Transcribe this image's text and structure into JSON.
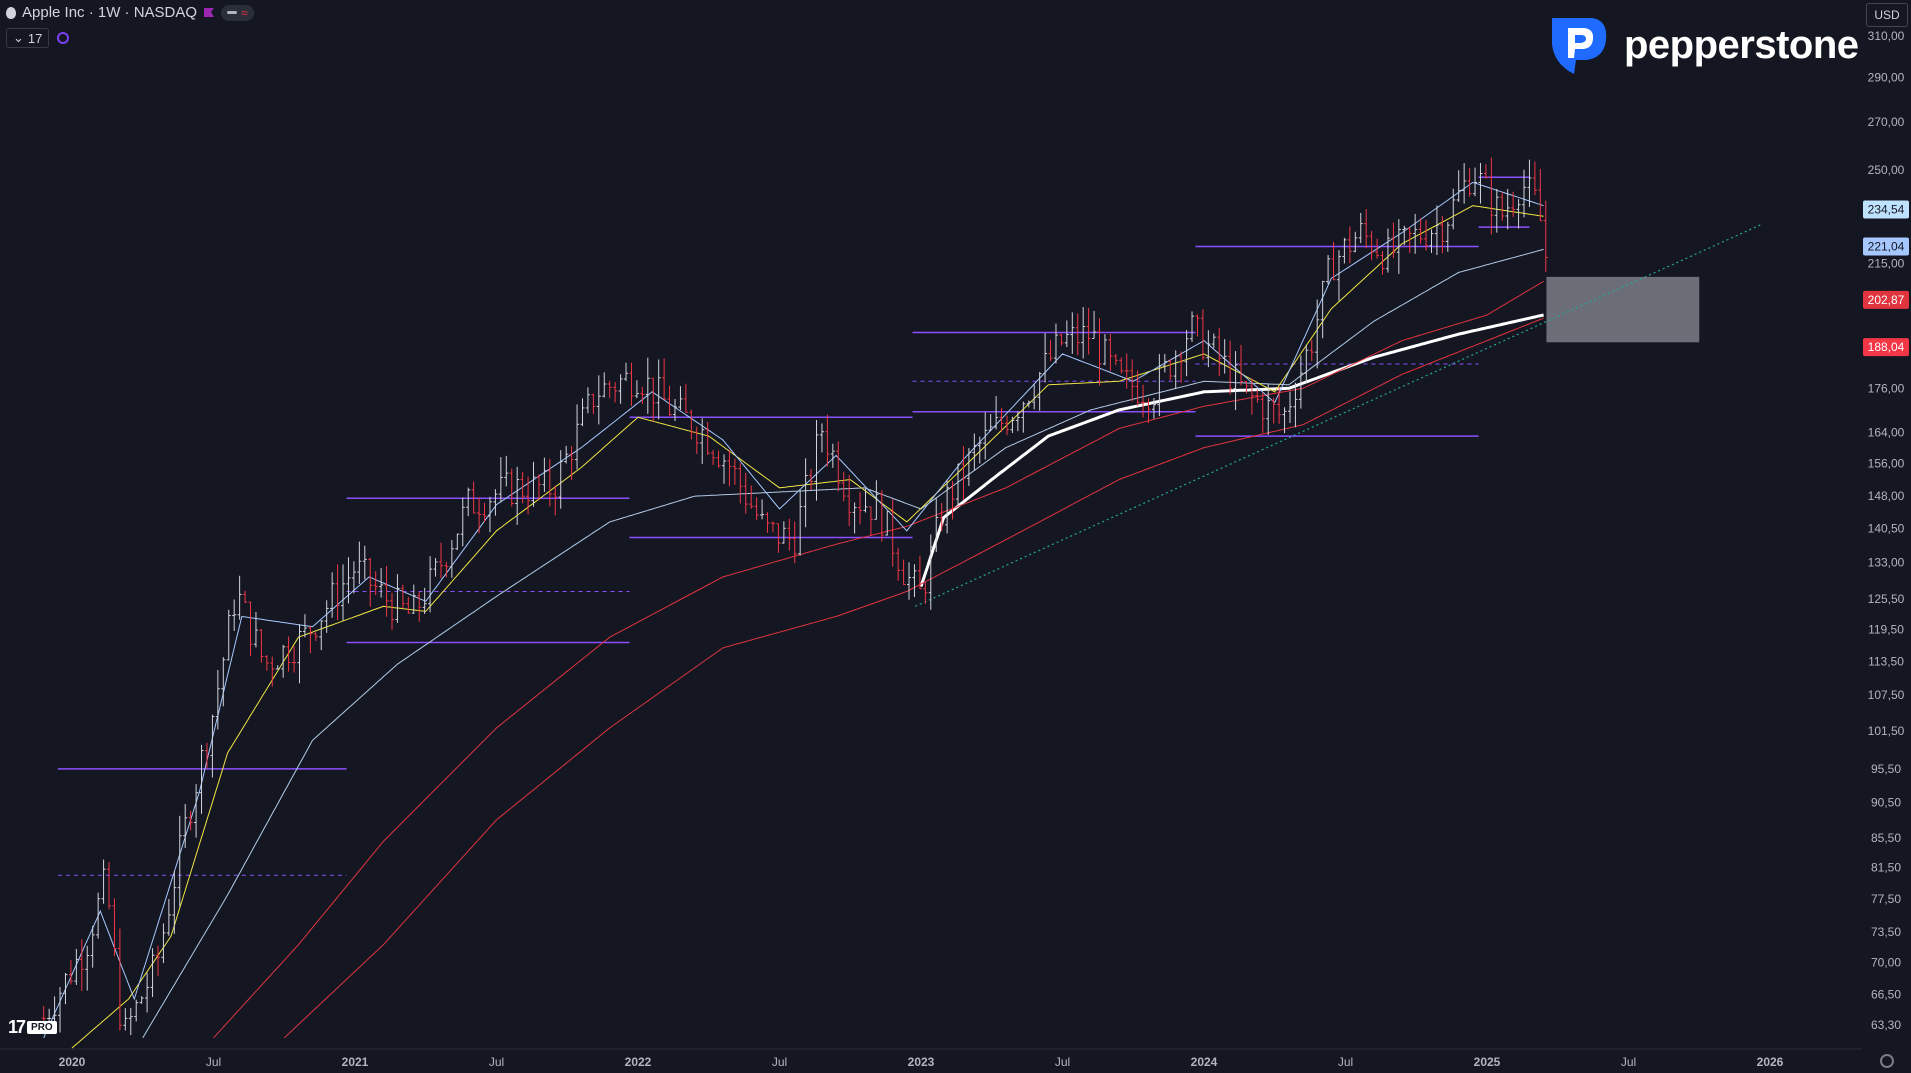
{
  "header": {
    "symbol_title": "Apple Inc · 1W · NASDAQ",
    "indicator_count": "17",
    "currency": "USD",
    "flag_color": "#9c27b0"
  },
  "brand": {
    "name": "pepperstone",
    "color": "#1f6bff"
  },
  "badges": {
    "pro": "PRO"
  },
  "icons": [
    "apple-icon",
    "flag-icon",
    "eye-icon",
    "chevron-down-icon",
    "gear-icon",
    "pepperstone-logo",
    "tradingview-logo"
  ],
  "colors": {
    "background": "#141722",
    "candle_up": "#d1d4dc",
    "candle_down": "#f23645",
    "level_line": "#8a4fff",
    "ma_white": "#ffffff",
    "ma_light_blue": "#a6c8ff",
    "ma_blue": "#b3cbe6",
    "ma_yellow": "#f0e442",
    "ma_red": "#e0343f",
    "trendline": "#26a69a",
    "zone": "#b2b5be"
  },
  "chart_data": {
    "type": "candlestick",
    "title": "Apple Inc · 1W · NASDAQ",
    "xlabel": "",
    "ylabel": "",
    "x_ticks": [
      "2020",
      "Jul",
      "2021",
      "Jul",
      "2022",
      "Jul",
      "2023",
      "Jul",
      "2024",
      "Jul",
      "2025",
      "Jul",
      "2026"
    ],
    "y_ticks": [
      "310,00",
      "290,00",
      "270,00",
      "250,00",
      "215,00",
      "176,00",
      "164,00",
      "156,00",
      "148,00",
      "140,50",
      "133,00",
      "125,50",
      "119,50",
      "113,50",
      "107,50",
      "101,50",
      "95,50",
      "90,50",
      "85,50",
      "81,50",
      "77,50",
      "73,50",
      "70,00",
      "66,50",
      "63,30"
    ],
    "ylim": [
      61,
      318
    ],
    "scale": "log",
    "grid": false,
    "price_labels": [
      {
        "value": "234,54",
        "bg": "#bfe3ff",
        "fg": "#141722"
      },
      {
        "value": "221,04",
        "bg": "#a6c8ff",
        "fg": "#141722"
      },
      {
        "value": "202,87",
        "bg": "#e0343f",
        "fg": "#ffffff"
      },
      {
        "value": "188,04",
        "bg": "#f23645",
        "fg": "#ffffff"
      }
    ],
    "price_path": [
      [
        2019.9,
        64
      ],
      [
        2020.05,
        72
      ],
      [
        2020.12,
        80
      ],
      [
        2020.18,
        62
      ],
      [
        2020.3,
        70
      ],
      [
        2020.4,
        87
      ],
      [
        2020.5,
        105
      ],
      [
        2020.58,
        127
      ],
      [
        2020.68,
        113
      ],
      [
        2020.82,
        118
      ],
      [
        2021.0,
        132
      ],
      [
        2021.1,
        126
      ],
      [
        2021.2,
        122
      ],
      [
        2021.28,
        130
      ],
      [
        2021.4,
        146
      ],
      [
        2021.55,
        150
      ],
      [
        2021.7,
        150
      ],
      [
        2021.85,
        175
      ],
      [
        2022.0,
        180
      ],
      [
        2022.12,
        170
      ],
      [
        2022.22,
        165
      ],
      [
        2022.32,
        156
      ],
      [
        2022.45,
        140
      ],
      [
        2022.55,
        138
      ],
      [
        2022.65,
        165
      ],
      [
        2022.75,
        148
      ],
      [
        2022.85,
        145
      ],
      [
        2022.95,
        130
      ],
      [
        2023.0,
        126
      ],
      [
        2023.08,
        146
      ],
      [
        2023.2,
        160
      ],
      [
        2023.35,
        172
      ],
      [
        2023.5,
        190
      ],
      [
        2023.6,
        192
      ],
      [
        2023.7,
        178
      ],
      [
        2023.82,
        175
      ],
      [
        2023.95,
        194
      ],
      [
        2024.05,
        185
      ],
      [
        2024.15,
        174
      ],
      [
        2024.28,
        168
      ],
      [
        2024.38,
        190
      ],
      [
        2024.45,
        215
      ],
      [
        2024.55,
        226
      ],
      [
        2024.65,
        218
      ],
      [
        2024.75,
        225
      ],
      [
        2024.85,
        230
      ],
      [
        2024.95,
        250
      ],
      [
        2025.05,
        232
      ],
      [
        2025.12,
        245
      ],
      [
        2025.18,
        236
      ],
      [
        2025.22,
        210
      ]
    ],
    "moving_averages": [
      {
        "name": "MA white",
        "color": "#ffffff",
        "width": 3,
        "points": [
          [
            2023.0,
            128
          ],
          [
            2023.08,
            143
          ],
          [
            2023.25,
            152
          ],
          [
            2023.45,
            163
          ],
          [
            2023.7,
            170
          ],
          [
            2024.0,
            175
          ],
          [
            2024.3,
            176
          ],
          [
            2024.6,
            185
          ],
          [
            2024.9,
            192
          ],
          [
            2025.2,
            198
          ]
        ]
      },
      {
        "name": "MA red 1",
        "color": "#e0343f",
        "width": 1,
        "points": [
          [
            2020.5,
            62
          ],
          [
            2020.8,
            72
          ],
          [
            2021.1,
            85
          ],
          [
            2021.5,
            102
          ],
          [
            2021.9,
            118
          ],
          [
            2022.3,
            130
          ],
          [
            2022.7,
            137
          ],
          [
            2022.95,
            141
          ],
          [
            2023.3,
            150
          ],
          [
            2023.7,
            165
          ],
          [
            2024.0,
            171
          ],
          [
            2024.35,
            176
          ],
          [
            2024.7,
            190
          ],
          [
            2025.0,
            198
          ],
          [
            2025.2,
            209
          ]
        ]
      },
      {
        "name": "MA red 2",
        "color": "#e0343f",
        "width": 1,
        "points": [
          [
            2020.75,
            62
          ],
          [
            2021.1,
            72
          ],
          [
            2021.5,
            88
          ],
          [
            2021.9,
            102
          ],
          [
            2022.3,
            116
          ],
          [
            2022.7,
            122
          ],
          [
            2022.95,
            127
          ],
          [
            2023.3,
            138
          ],
          [
            2023.7,
            152
          ],
          [
            2024.0,
            160
          ],
          [
            2024.35,
            166
          ],
          [
            2024.7,
            180
          ],
          [
            2025.0,
            190
          ],
          [
            2025.2,
            197
          ]
        ]
      },
      {
        "name": "MA light blue",
        "color": "#b3cbe6",
        "width": 1,
        "points": [
          [
            2020.25,
            62
          ],
          [
            2020.55,
            78
          ],
          [
            2020.85,
            100
          ],
          [
            2021.15,
            113
          ],
          [
            2021.5,
            126
          ],
          [
            2021.9,
            142
          ],
          [
            2022.2,
            148
          ],
          [
            2022.5,
            149
          ],
          [
            2022.8,
            150
          ],
          [
            2023.0,
            145
          ],
          [
            2023.3,
            160
          ],
          [
            2023.6,
            170
          ],
          [
            2024.0,
            178
          ],
          [
            2024.3,
            177
          ],
          [
            2024.6,
            196
          ],
          [
            2024.9,
            212
          ],
          [
            2025.2,
            220
          ]
        ]
      },
      {
        "name": "MA yellow",
        "color": "#f0e442",
        "width": 1,
        "points": [
          [
            2020.0,
            61
          ],
          [
            2020.2,
            66
          ],
          [
            2020.35,
            73
          ],
          [
            2020.55,
            98
          ],
          [
            2020.8,
            118
          ],
          [
            2021.1,
            124
          ],
          [
            2021.25,
            123
          ],
          [
            2021.5,
            140
          ],
          [
            2021.8,
            155
          ],
          [
            2022.0,
            168
          ],
          [
            2022.25,
            163
          ],
          [
            2022.5,
            150
          ],
          [
            2022.75,
            152
          ],
          [
            2022.95,
            142
          ],
          [
            2023.15,
            155
          ],
          [
            2023.45,
            177
          ],
          [
            2023.7,
            178
          ],
          [
            2024.0,
            186
          ],
          [
            2024.25,
            175
          ],
          [
            2024.45,
            200
          ],
          [
            2024.7,
            222
          ],
          [
            2024.95,
            236
          ],
          [
            2025.2,
            232
          ]
        ]
      },
      {
        "name": "MA blue",
        "color": "#a6c8ff",
        "width": 1,
        "points": [
          [
            2019.9,
            62
          ],
          [
            2020.1,
            76
          ],
          [
            2020.22,
            66
          ],
          [
            2020.45,
            92
          ],
          [
            2020.6,
            122
          ],
          [
            2020.85,
            120
          ],
          [
            2021.05,
            130
          ],
          [
            2021.25,
            125
          ],
          [
            2021.5,
            146
          ],
          [
            2021.8,
            160
          ],
          [
            2022.05,
            175
          ],
          [
            2022.3,
            162
          ],
          [
            2022.5,
            145
          ],
          [
            2022.7,
            158
          ],
          [
            2022.95,
            140
          ],
          [
            2023.15,
            157
          ],
          [
            2023.5,
            186
          ],
          [
            2023.75,
            178
          ],
          [
            2024.0,
            190
          ],
          [
            2024.25,
            172
          ],
          [
            2024.45,
            210
          ],
          [
            2024.7,
            226
          ],
          [
            2024.95,
            245
          ],
          [
            2025.2,
            236
          ]
        ]
      }
    ],
    "horizontal_levels": [
      {
        "price": 95.5,
        "from": 2019.95,
        "to": 2020.97,
        "style": "solid"
      },
      {
        "price": 80.5,
        "from": 2019.95,
        "to": 2020.97,
        "style": "dashed"
      },
      {
        "price": 147.5,
        "from": 2020.97,
        "to": 2021.97,
        "style": "solid"
      },
      {
        "price": 117,
        "from": 2020.97,
        "to": 2021.97,
        "style": "solid"
      },
      {
        "price": 127,
        "from": 2020.97,
        "to": 2021.97,
        "style": "dashed"
      },
      {
        "price": 168,
        "from": 2021.97,
        "to": 2022.97,
        "style": "solid"
      },
      {
        "price": 138.5,
        "from": 2021.97,
        "to": 2022.97,
        "style": "solid"
      },
      {
        "price": 192.5,
        "from": 2022.97,
        "to": 2023.97,
        "style": "solid"
      },
      {
        "price": 169.5,
        "from": 2022.97,
        "to": 2023.97,
        "style": "solid"
      },
      {
        "price": 178,
        "from": 2022.97,
        "to": 2023.97,
        "style": "dashed"
      },
      {
        "price": 221,
        "from": 2023.97,
        "to": 2024.97,
        "style": "solid"
      },
      {
        "price": 163,
        "from": 2023.97,
        "to": 2024.97,
        "style": "solid"
      },
      {
        "price": 183,
        "from": 2023.97,
        "to": 2024.97,
        "style": "dashed"
      },
      {
        "price": 247,
        "from": 2024.97,
        "to": 2025.15,
        "style": "solid"
      },
      {
        "price": 228,
        "from": 2024.97,
        "to": 2025.15,
        "style": "solid"
      }
    ],
    "trendline": {
      "from": [
        2022.98,
        124
      ],
      "to": [
        2025.97,
        229
      ]
    },
    "zone": {
      "x0": 2025.21,
      "x1": 2025.75,
      "y0": 189.5,
      "y1": 210.5
    }
  }
}
